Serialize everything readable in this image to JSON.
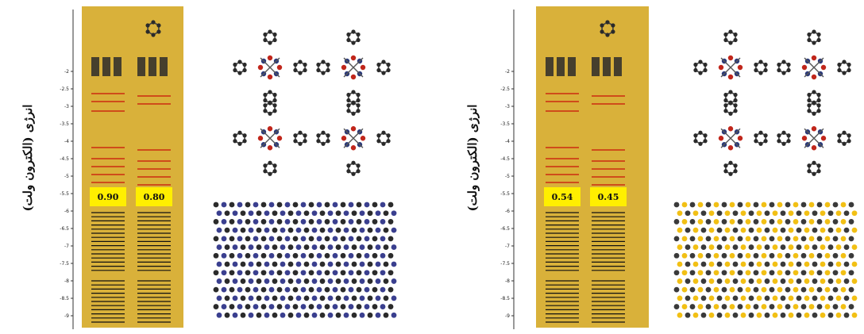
{
  "figure": {
    "panels": [
      {
        "id": "left",
        "ylabel": "انرژی (الکترون ولت)",
        "yticks": [
          "-2",
          "-2.5",
          "-3",
          "-3.5",
          "-4",
          "-4.5",
          "-5",
          "-5.5",
          "-6",
          "-6.5",
          "-7",
          "-7.5",
          "-8",
          "-8.5",
          "-9"
        ],
        "gap_labels": [
          "0.90",
          "0.80"
        ],
        "substrate_colors": [
          "#3a3f8f",
          "#2b2b2b"
        ]
      },
      {
        "id": "right",
        "ylabel": "انرژی (الکترون ولت)",
        "yticks": [
          "-2",
          "-2.5",
          "-3",
          "-3.5",
          "-4",
          "-4.5",
          "-5",
          "-5.5",
          "-6",
          "-6.5",
          "-7",
          "-7.5",
          "-8",
          "-8.5",
          "-9"
        ],
        "gap_labels": [
          "0.54",
          "0.45"
        ],
        "substrate_colors": [
          "#f2c014",
          "#3a3a3a"
        ]
      }
    ],
    "colors": {
      "panel_background": "#d9b13a",
      "gap_highlight": "#ffef00",
      "occupied_level": "#111111",
      "unoccupied_level": "#cc2a10",
      "atom_carbon": "#2a2a2a",
      "atom_oxygen": "#c0261b",
      "atom_metal": "#2b3a7a"
    }
  }
}
